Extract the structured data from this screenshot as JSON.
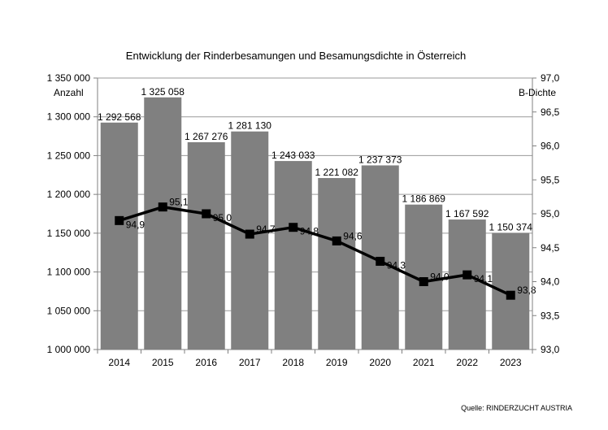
{
  "chart_data": {
    "type": "bar",
    "title": "Entwicklung der Rinderbesamungen und Besamungsdichte in Österreich",
    "source": "Quelle: RINDERZUCHT AUSTRIA",
    "categories": [
      "2014",
      "2015",
      "2016",
      "2017",
      "2018",
      "2019",
      "2020",
      "2021",
      "2022",
      "2023"
    ],
    "bar_series": {
      "name": "Anzahl",
      "values": [
        1292568,
        1325058,
        1267276,
        1281130,
        1243033,
        1221082,
        1237373,
        1186869,
        1167592,
        1150374
      ],
      "labels": [
        "1 292 568",
        "1 325 058",
        "1 267 276",
        "1 281 130",
        "1 243 033",
        "1 221 082",
        "1 237 373",
        "1 186 869",
        "1 167 592",
        "1 150 374"
      ],
      "color": "#808080"
    },
    "line_series": {
      "name": "B-Dichte",
      "values": [
        94.9,
        95.1,
        95.0,
        94.7,
        94.8,
        94.6,
        94.3,
        94.0,
        94.1,
        93.8
      ],
      "labels": [
        "94,9",
        "95,1",
        "95,0",
        "94,7",
        "94,8",
        "94,6",
        "94,3",
        "94,0",
        "94,1",
        "93,8"
      ],
      "color": "#000000"
    },
    "y_left": {
      "label": "Anzahl",
      "range": [
        1000000,
        1350000
      ],
      "ticks": [
        "1 000 000",
        "1 050 000",
        "1 100 000",
        "1 150 000",
        "1 200 000",
        "1 250 000",
        "1 300 000",
        "1 350 000"
      ]
    },
    "y_right": {
      "label": "B-Dichte",
      "range": [
        93.0,
        97.0
      ],
      "ticks": [
        "93,0",
        "93,5",
        "94,0",
        "94,5",
        "95,0",
        "95,5",
        "96,0",
        "96,5",
        "97,0"
      ]
    },
    "grid": true
  }
}
